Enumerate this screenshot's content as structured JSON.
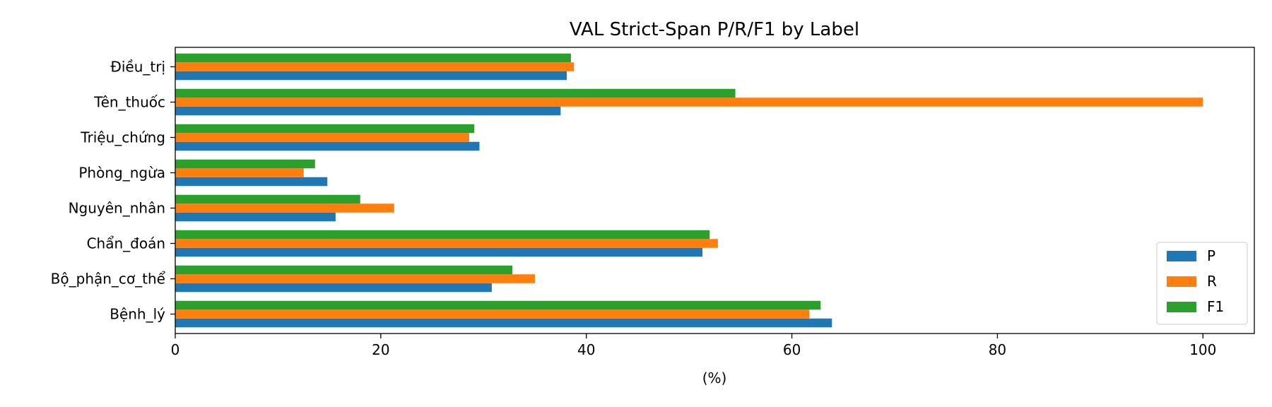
{
  "chart_data": {
    "type": "bar",
    "orientation": "horizontal",
    "title": "VAL Strict-Span P/R/F1 by Label",
    "xlabel": "(%)",
    "ylabel": "",
    "xlim": [
      0,
      105
    ],
    "xticks": [
      0,
      20,
      40,
      60,
      80,
      100
    ],
    "grid": false,
    "legend_position": "lower-right",
    "categories": [
      "Bệnh_lý",
      "Bộ_phận_cơ_thể",
      "Chẩn_đoán",
      "Nguyên_nhân",
      "Phòng_ngừa",
      "Triệu_chứng",
      "Tên_thuốc",
      "Điều_trị"
    ],
    "series": [
      {
        "name": "P",
        "color": "#1f77b4",
        "values": [
          63.9,
          30.8,
          51.3,
          15.6,
          14.8,
          29.6,
          37.5,
          38.1
        ]
      },
      {
        "name": "R",
        "color": "#ff7f0e",
        "values": [
          61.7,
          35.0,
          52.8,
          21.3,
          12.5,
          28.6,
          100.0,
          38.8
        ]
      },
      {
        "name": "F1",
        "color": "#2ca02c",
        "values": [
          62.8,
          32.8,
          52.0,
          18.0,
          13.6,
          29.1,
          54.5,
          38.5
        ]
      }
    ]
  }
}
